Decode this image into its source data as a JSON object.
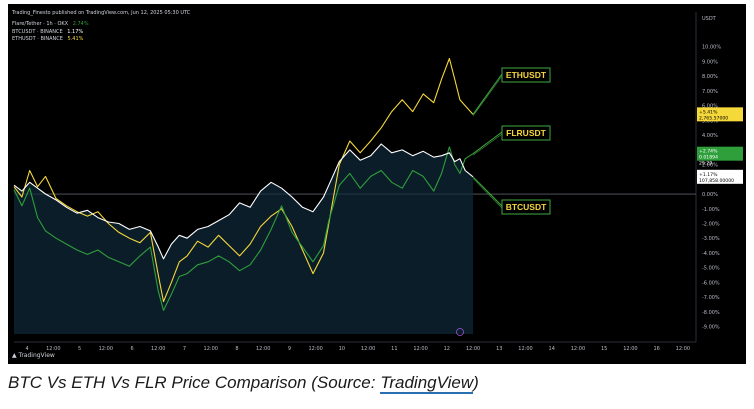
{
  "header": {
    "publish_line": "Trading_Finesto published on TradingView.com, Jun 12, 2025 05:30 UTC",
    "legend_title": "Flare/Tether · 1h · OKX",
    "legend_title_change": "2.74%",
    "legend_btc": "BTCUSDT · BINANCE",
    "legend_btc_change": "1.17%",
    "legend_eth": "ETHUSDT · BINANCE",
    "legend_eth_change": "5.41%"
  },
  "axis": {
    "unit_label": "USDT"
  },
  "price_tags": {
    "eth_pct": "+5.41%",
    "eth_price": "2,765.57000",
    "flr_pct": "+2.74%",
    "flr_price": "0.01894",
    "flr_time": "29:29",
    "btc_pct": "+1.17%",
    "btc_price": "107,858.00000"
  },
  "annotations": {
    "eth": "ETHUSDT",
    "flr": "FLRUSDT",
    "btc": "BTCUSDT"
  },
  "footer": {
    "logo_text": "TradingView"
  },
  "caption": {
    "prefix": "BTC Vs ETH Vs FLR Price Comparison (Source: ",
    "link": "TradingView",
    "suffix": ")"
  },
  "colors": {
    "background": "#000000",
    "eth": "#f5d83a",
    "flr": "#2e9f3a",
    "btc": "#ffffff",
    "annotation": "#f5d83a",
    "annotation_line": "#3fa83f",
    "area_fill": "#0f2a3a",
    "axis_text": "#b8bcc6"
  },
  "chart_data": {
    "type": "line",
    "title": "",
    "xlabel": "",
    "ylabel": "",
    "ylim": [
      -9.5,
      11
    ],
    "y_ticks": [
      "10.00%",
      "9.00%",
      "8.00%",
      "7.00%",
      "6.00%",
      "5.00%",
      "4.00%",
      "3.00%",
      "2.00%",
      "1.00%",
      "0.00%",
      "-1.00%",
      "-2.00%",
      "-3.00%",
      "-4.00%",
      "-5.00%",
      "-6.00%",
      "-7.00%",
      "-8.00%",
      "-9.00%"
    ],
    "x_ticks": [
      "4",
      "12:00",
      "5",
      "12:00",
      "6",
      "12:00",
      "7",
      "12:00",
      "8",
      "12:00",
      "9",
      "12:00",
      "10",
      "12:00",
      "11",
      "12:00",
      "12",
      "12:00",
      "13",
      "12:00",
      "14",
      "12:00",
      "15",
      "12:00",
      "16",
      "12:00"
    ],
    "x_range": [
      0,
      26
    ],
    "series": [
      {
        "name": "ETHUSDT",
        "x": [
          0,
          0.3,
          0.6,
          0.9,
          1.2,
          1.6,
          2.0,
          2.4,
          2.8,
          3.2,
          3.6,
          4.0,
          4.4,
          4.8,
          5.2,
          5.5,
          5.7,
          6.0,
          6.3,
          6.6,
          7.0,
          7.4,
          7.8,
          8.2,
          8.6,
          9.0,
          9.4,
          9.8,
          10.2,
          10.6,
          11.0,
          11.4,
          11.8,
          12.0,
          12.4,
          12.8,
          13.2,
          13.6,
          14.0,
          14.4,
          14.8,
          15.2,
          15.6,
          16.0,
          16.3,
          16.6,
          16.8,
          17.0,
          17.2,
          17.5
        ],
        "y": [
          0.5,
          -0.2,
          1.6,
          0.5,
          1.2,
          -0.3,
          -0.8,
          -1.2,
          -1.5,
          -1.2,
          -2.0,
          -2.6,
          -3.0,
          -3.3,
          -2.6,
          -5.5,
          -7.3,
          -6.0,
          -4.6,
          -4.2,
          -3.2,
          -3.6,
          -2.8,
          -3.5,
          -4.2,
          -3.4,
          -2.2,
          -1.5,
          -1.0,
          -2.2,
          -3.8,
          -5.4,
          -4.0,
          -2.0,
          2.0,
          3.6,
          2.8,
          3.6,
          4.5,
          5.6,
          6.4,
          5.6,
          6.8,
          6.2,
          7.8,
          9.2,
          7.8,
          6.4,
          6.0,
          5.41
        ]
      },
      {
        "name": "FLRUSDT",
        "x": [
          0,
          0.3,
          0.6,
          0.9,
          1.2,
          1.6,
          2.0,
          2.4,
          2.8,
          3.2,
          3.6,
          4.0,
          4.4,
          4.8,
          5.2,
          5.5,
          5.7,
          6.0,
          6.3,
          6.6,
          7.0,
          7.4,
          7.8,
          8.2,
          8.6,
          9.0,
          9.4,
          9.8,
          10.2,
          10.6,
          11.0,
          11.4,
          11.8,
          12.0,
          12.4,
          12.8,
          13.2,
          13.6,
          14.0,
          14.4,
          14.8,
          15.2,
          15.6,
          16.0,
          16.3,
          16.6,
          16.8,
          17.0,
          17.2,
          17.5
        ],
        "y": [
          0.3,
          -0.8,
          0.4,
          -1.6,
          -2.5,
          -3.0,
          -3.4,
          -3.8,
          -4.1,
          -3.8,
          -4.3,
          -4.6,
          -4.9,
          -4.2,
          -3.6,
          -6.6,
          -7.9,
          -6.8,
          -5.6,
          -5.4,
          -4.8,
          -4.6,
          -4.2,
          -4.6,
          -5.2,
          -4.8,
          -3.8,
          -2.4,
          -0.8,
          -2.6,
          -3.6,
          -4.6,
          -3.5,
          -1.8,
          0.6,
          1.4,
          0.4,
          1.2,
          1.6,
          0.8,
          0.4,
          1.6,
          1.2,
          0.2,
          1.4,
          3.2,
          2.0,
          1.4,
          2.4,
          2.74
        ]
      },
      {
        "name": "BTCUSDT",
        "x": [
          0,
          0.3,
          0.6,
          0.9,
          1.2,
          1.6,
          2.0,
          2.4,
          2.8,
          3.2,
          3.6,
          4.0,
          4.4,
          4.8,
          5.2,
          5.5,
          5.7,
          6.0,
          6.3,
          6.6,
          7.0,
          7.4,
          7.8,
          8.2,
          8.6,
          9.0,
          9.4,
          9.8,
          10.2,
          10.6,
          11.0,
          11.4,
          11.8,
          12.0,
          12.4,
          12.8,
          13.2,
          13.6,
          14.0,
          14.4,
          14.8,
          15.2,
          15.6,
          16.0,
          16.3,
          16.6,
          16.8,
          17.0,
          17.2,
          17.5
        ],
        "y": [
          0.6,
          0.2,
          0.8,
          0.4,
          0.0,
          -0.4,
          -0.9,
          -1.3,
          -1.1,
          -1.6,
          -1.9,
          -2.0,
          -2.4,
          -2.2,
          -2.5,
          -3.6,
          -4.4,
          -3.4,
          -2.8,
          -3.0,
          -2.4,
          -2.2,
          -1.8,
          -1.4,
          -0.6,
          -0.9,
          0.2,
          0.8,
          0.4,
          -0.2,
          -0.9,
          -1.2,
          -0.2,
          0.6,
          2.2,
          3.0,
          2.3,
          2.6,
          3.4,
          2.8,
          3.0,
          2.6,
          2.9,
          2.5,
          2.6,
          2.8,
          2.2,
          2.4,
          1.6,
          1.17
        ]
      }
    ]
  }
}
